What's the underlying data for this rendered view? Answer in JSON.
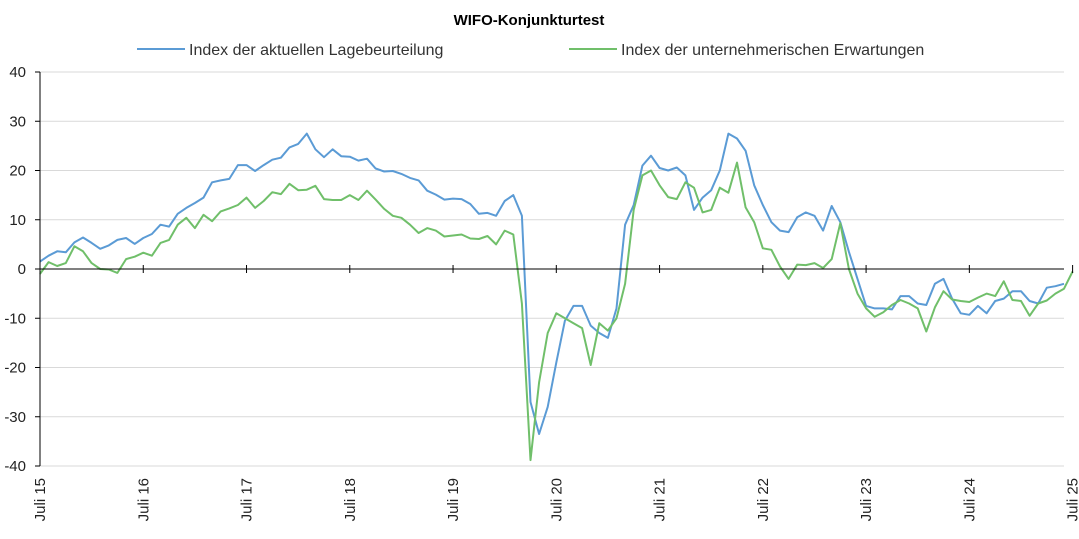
{
  "chart_data": {
    "type": "line",
    "title": "WIFO-Konjunkturtest",
    "xlabel": "",
    "ylabel": "",
    "ylim": [
      -40,
      40
    ],
    "yticks": [
      -40,
      -30,
      -20,
      -10,
      0,
      10,
      20,
      30,
      40
    ],
    "x_tick_labels": [
      "Juli 15",
      "Juli 16",
      "Juli 17",
      "Juli 18",
      "Juli 19",
      "Juli 20",
      "Juli 21",
      "Juli 22",
      "Juli 23",
      "Juli 24",
      "Juli 25"
    ],
    "x_start": "2015-07",
    "x_end": "2025-07",
    "grid": "horizontal",
    "legend_position": "top",
    "colors": {
      "series1": "#5b9bd5",
      "series2": "#70bf6a",
      "grid": "#d9d9d9",
      "axis": "#000000"
    },
    "series": [
      {
        "name": "Index der aktuellen Lagebeurteilung",
        "values": [
          1.5,
          2.7,
          3.6,
          3.4,
          5.4,
          6.4,
          5.3,
          4.1,
          4.8,
          5.9,
          6.3,
          5.1,
          6.3,
          7.1,
          9.0,
          8.6,
          11.2,
          12.4,
          13.4,
          14.5,
          17.6,
          18.0,
          18.3,
          21.1,
          21.1,
          19.9,
          21.1,
          22.2,
          22.6,
          24.7,
          25.4,
          27.5,
          24.3,
          22.7,
          24.3,
          22.9,
          22.8,
          22.0,
          22.4,
          20.4,
          19.8,
          19.9,
          19.3,
          18.5,
          18.0,
          15.9,
          15.1,
          14.1,
          14.3,
          14.2,
          13.2,
          11.2,
          11.4,
          10.8,
          13.8,
          15.0,
          10.8,
          -27.0,
          -33.5,
          -28.0,
          -19.0,
          -10.5,
          -7.5,
          -7.5,
          -11.5,
          -13.0,
          -14.0,
          -8.0,
          9.0,
          13.0,
          21.0,
          23.0,
          20.5,
          20.0,
          20.6,
          19.0,
          12.0,
          14.5,
          16.0,
          20.0,
          27.5,
          26.5,
          24.0,
          17.0,
          13.0,
          9.5,
          7.8,
          7.5,
          10.5,
          11.5,
          10.8,
          7.8,
          12.8,
          9.5,
          3.5,
          -2.0,
          -7.5,
          -8.0,
          -8.0,
          -8.2,
          -5.5,
          -5.5,
          -7.0,
          -7.3,
          -3.0,
          -2.0,
          -6.0,
          -9.0,
          -9.3,
          -7.5,
          -9.0,
          -6.5,
          -6.0,
          -4.5,
          -4.5,
          -6.5,
          -7.0,
          -3.8,
          -3.5,
          -3.0
        ]
      },
      {
        "name": "Index der unternehmerischen Erwartungen",
        "values": [
          -1.0,
          1.4,
          0.6,
          1.2,
          4.6,
          3.6,
          1.2,
          0.0,
          -0.1,
          -0.8,
          2.0,
          2.5,
          3.3,
          2.7,
          5.3,
          5.9,
          9.0,
          10.4,
          8.3,
          11.0,
          9.7,
          11.7,
          12.3,
          13.0,
          14.5,
          12.4,
          13.8,
          15.6,
          15.2,
          17.3,
          16.0,
          16.1,
          16.9,
          14.2,
          14.0,
          14.0,
          15.0,
          14.0,
          15.9,
          14.1,
          12.2,
          10.8,
          10.4,
          9.0,
          7.3,
          8.3,
          7.8,
          6.6,
          6.8,
          7.0,
          6.2,
          6.1,
          6.7,
          5.0,
          7.8,
          7.0,
          -7.0,
          -38.8,
          -23.0,
          -13.0,
          -9.0,
          -10.0,
          -11.0,
          -12.0,
          -19.5,
          -11.0,
          -12.5,
          -10.0,
          -3.0,
          12.0,
          19.0,
          20.0,
          17.0,
          14.6,
          14.2,
          17.6,
          16.5,
          11.5,
          12.0,
          16.5,
          15.5,
          21.6,
          12.5,
          9.5,
          4.2,
          3.9,
          0.5,
          -2.0,
          0.9,
          0.8,
          1.2,
          0.2,
          2.0,
          9.3,
          0.0,
          -5.0,
          -8.0,
          -9.7,
          -8.8,
          -7.3,
          -6.3,
          -7.0,
          -8.0,
          -12.7,
          -7.8,
          -4.5,
          -6.2,
          -6.5,
          -6.7,
          -5.8,
          -5.0,
          -5.5,
          -2.5,
          -6.3,
          -6.5,
          -9.5,
          -7.0,
          -6.4,
          -5.0,
          -4.0,
          -0.5
        ]
      }
    ]
  }
}
